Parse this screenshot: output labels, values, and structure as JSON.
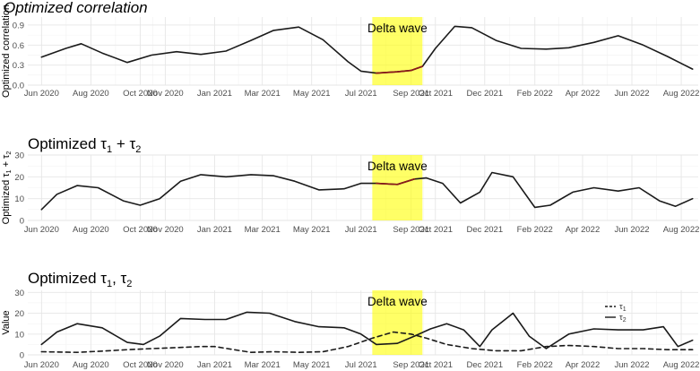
{
  "chart_data": [
    {
      "type": "line",
      "title": "Optimized correlation",
      "title_italic": true,
      "ylabel": "Optimized correlation",
      "ylim": [
        0,
        1.02
      ],
      "yticks": [
        0.0,
        0.3,
        0.6,
        0.9
      ],
      "ytick_labels": [
        "0.0",
        "0.3",
        "0.6",
        "0.9"
      ],
      "xticks": [
        "2020-06-01",
        "2020-08-01",
        "2020-10-01",
        "2020-11-01",
        "2021-01-01",
        "2021-03-01",
        "2021-05-01",
        "2021-07-01",
        "2021-09-01",
        "2021-10-01",
        "2021-12-01",
        "2022-02-01",
        "2022-04-01",
        "2022-06-01",
        "2022-08-01"
      ],
      "xtick_labels": [
        "Jun 2020",
        "Aug 2020",
        "Oct 2020",
        "Nov 2020",
        "Jan 2021",
        "Mar 2021",
        "May 2021",
        "Jul 2021",
        "Sep 2021",
        "Oct 2021",
        "Dec 2021",
        "Feb 2022",
        "Apr 2022",
        "Jun 2022",
        "Aug 2022"
      ],
      "xlim": [
        "2020-05-15",
        "2022-08-22"
      ],
      "grid": true,
      "annotation": {
        "label": "Delta wave",
        "from": "2021-07-15",
        "to": "2021-09-15",
        "color": "#ffff00"
      },
      "series": [
        {
          "color": "#1a1a1a",
          "x": [
            "2020-06-01",
            "2020-07-01",
            "2020-07-20",
            "2020-08-15",
            "2020-09-15",
            "2020-10-15",
            "2020-11-15",
            "2020-12-15",
            "2021-01-15",
            "2021-02-15",
            "2021-03-15",
            "2021-04-15",
            "2021-05-15",
            "2021-06-15",
            "2021-07-01",
            "2021-07-20",
            "2021-08-15",
            "2021-09-01",
            "2021-09-15",
            "2021-10-01",
            "2021-10-25",
            "2021-11-15",
            "2021-12-15",
            "2022-01-15",
            "2022-02-15",
            "2022-03-15",
            "2022-04-15",
            "2022-05-15",
            "2022-06-15",
            "2022-07-15",
            "2022-08-15"
          ],
          "y": [
            0.42,
            0.55,
            0.62,
            0.48,
            0.34,
            0.45,
            0.5,
            0.46,
            0.51,
            0.67,
            0.82,
            0.87,
            0.68,
            0.35,
            0.21,
            0.18,
            0.2,
            0.22,
            0.28,
            0.55,
            0.88,
            0.86,
            0.67,
            0.55,
            0.54,
            0.56,
            0.64,
            0.74,
            0.6,
            0.43,
            0.24
          ]
        }
      ],
      "highlight_color": "#8b1a1a"
    },
    {
      "type": "line",
      "title_prefix": "Optimized ",
      "title_math": [
        "τ",
        "1",
        " + ",
        "τ",
        "2"
      ],
      "ylabel_prefix": "Optimized ",
      "ylabel_math": [
        "τ",
        "1",
        " + ",
        "τ",
        "2"
      ],
      "ylim": [
        0,
        30
      ],
      "yticks": [
        0,
        10,
        20,
        30
      ],
      "ytick_labels": [
        "0",
        "10",
        "20",
        "30"
      ],
      "xticks": [
        "2020-06-01",
        "2020-08-01",
        "2020-10-01",
        "2020-11-01",
        "2021-01-01",
        "2021-03-01",
        "2021-05-01",
        "2021-07-01",
        "2021-09-01",
        "2021-10-01",
        "2021-12-01",
        "2022-02-01",
        "2022-04-01",
        "2022-06-01",
        "2022-08-01"
      ],
      "xtick_labels": [
        "Jun 2020",
        "Aug 2020",
        "Oct 2020",
        "Nov 2020",
        "Jan 2021",
        "Mar 2021",
        "May 2021",
        "Jul 2021",
        "Sep 2021",
        "Oct 2021",
        "Dec 2021",
        "Feb 2022",
        "Apr 2022",
        "Jun 2022",
        "Aug 2022"
      ],
      "xlim": [
        "2020-05-15",
        "2022-08-22"
      ],
      "grid": true,
      "annotation": {
        "label": "Delta wave",
        "from": "2021-07-15",
        "to": "2021-09-15",
        "color": "#ffff00"
      },
      "series": [
        {
          "color": "#1a1a1a",
          "x": [
            "2020-06-01",
            "2020-06-20",
            "2020-07-15",
            "2020-08-10",
            "2020-09-10",
            "2020-10-01",
            "2020-10-25",
            "2020-11-20",
            "2020-12-15",
            "2021-01-15",
            "2021-02-15",
            "2021-03-15",
            "2021-04-10",
            "2021-05-10",
            "2021-06-10",
            "2021-07-01",
            "2021-07-20",
            "2021-08-15",
            "2021-09-05",
            "2021-09-20",
            "2021-10-10",
            "2021-11-01",
            "2021-11-25",
            "2021-12-10",
            "2022-01-05",
            "2022-02-01",
            "2022-02-20",
            "2022-03-20",
            "2022-04-15",
            "2022-05-15",
            "2022-06-10",
            "2022-07-05",
            "2022-07-25",
            "2022-08-15"
          ],
          "y": [
            5,
            12,
            16,
            15,
            9,
            7,
            10,
            18,
            21,
            20,
            21,
            20.5,
            18,
            14,
            14.5,
            17,
            17,
            16.5,
            19,
            19.5,
            17,
            8,
            13,
            22,
            20,
            6,
            7,
            13,
            15,
            13.5,
            15,
            9,
            6.5,
            10
          ]
        }
      ],
      "highlight_color": "#8b1a1a"
    },
    {
      "type": "line",
      "title_prefix": "Optimized ",
      "title_math": [
        "τ",
        "1",
        ", ",
        "τ",
        "2"
      ],
      "ylabel": "Value",
      "ylim": [
        0,
        31
      ],
      "yticks": [
        0,
        10,
        20,
        30
      ],
      "ytick_labels": [
        "0",
        "10",
        "20",
        "30"
      ],
      "xticks": [
        "2020-06-01",
        "2020-08-01",
        "2020-10-01",
        "2020-11-01",
        "2021-01-01",
        "2021-03-01",
        "2021-05-01",
        "2021-07-01",
        "2021-09-01",
        "2021-10-01",
        "2021-12-01",
        "2022-02-01",
        "2022-04-01",
        "2022-06-01",
        "2022-08-01"
      ],
      "xtick_labels": [
        "Jun 2020",
        "Aug 2020",
        "Oct 2020",
        "Nov 2020",
        "Jan 2021",
        "Mar 2021",
        "May 2021",
        "Jul 2021",
        "Sep 2021",
        "Oct 2021",
        "Dec 2021",
        "Feb 2022",
        "Apr 2022",
        "Jun 2022",
        "Aug 2022"
      ],
      "xlim": [
        "2020-05-15",
        "2022-08-22"
      ],
      "grid": true,
      "legend_position": "right",
      "annotation": {
        "label": "Delta wave",
        "from": "2021-07-15",
        "to": "2021-09-15",
        "color": "#ffff00"
      },
      "series": [
        {
          "name": "τ1",
          "name_parts": [
            "τ",
            "1"
          ],
          "style": "dashed",
          "color": "#1a1a1a",
          "x": [
            "2020-06-01",
            "2020-07-15",
            "2020-08-15",
            "2020-09-15",
            "2020-10-15",
            "2020-11-15",
            "2020-12-15",
            "2021-01-01",
            "2021-01-25",
            "2021-02-15",
            "2021-03-15",
            "2021-04-15",
            "2021-05-15",
            "2021-06-15",
            "2021-07-15",
            "2021-08-10",
            "2021-09-01",
            "2021-09-20",
            "2021-10-15",
            "2021-11-15",
            "2021-12-15",
            "2022-01-15",
            "2022-02-15",
            "2022-03-15",
            "2022-04-15",
            "2022-05-15",
            "2022-06-15",
            "2022-07-15",
            "2022-08-15"
          ],
          "y": [
            1.5,
            1.2,
            1.8,
            2.5,
            3,
            3.5,
            4,
            4,
            2.5,
            1.2,
            1.5,
            1.2,
            1.5,
            4,
            8,
            11,
            10,
            8,
            5,
            3,
            2,
            2,
            4,
            4.5,
            4,
            3,
            3,
            2.5,
            2.5
          ]
        },
        {
          "name": "τ2",
          "name_parts": [
            "τ",
            "2"
          ],
          "style": "solid",
          "color": "#1a1a1a",
          "x": [
            "2020-06-01",
            "2020-06-20",
            "2020-07-15",
            "2020-08-15",
            "2020-09-15",
            "2020-10-05",
            "2020-10-25",
            "2020-11-20",
            "2020-12-20",
            "2021-01-15",
            "2021-02-10",
            "2021-03-10",
            "2021-04-10",
            "2021-05-10",
            "2021-06-10",
            "2021-07-01",
            "2021-07-20",
            "2021-08-15",
            "2021-09-05",
            "2021-09-25",
            "2021-10-15",
            "2021-11-05",
            "2021-11-25",
            "2021-12-10",
            "2022-01-05",
            "2022-01-25",
            "2022-02-15",
            "2022-03-15",
            "2022-04-15",
            "2022-05-15",
            "2022-06-15",
            "2022-07-10",
            "2022-07-28",
            "2022-08-15"
          ],
          "y": [
            5,
            11,
            15,
            13,
            6,
            5,
            9,
            17.5,
            17,
            17,
            20.5,
            20,
            16,
            13.5,
            13,
            10,
            5,
            5.5,
            9,
            12.5,
            15,
            12,
            4,
            12,
            20,
            9,
            3,
            10,
            12.5,
            12,
            12,
            13.5,
            4,
            7
          ]
        }
      ],
      "highlight_color": "#8b1a1a"
    }
  ]
}
